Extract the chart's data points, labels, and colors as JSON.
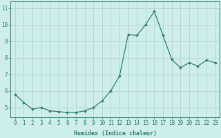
{
  "x": [
    0,
    1,
    2,
    3,
    4,
    5,
    6,
    7,
    8,
    9,
    10,
    11,
    12,
    13,
    14,
    15,
    16,
    17,
    18,
    19,
    20,
    21,
    22,
    23
  ],
  "y": [
    5.8,
    5.3,
    4.9,
    5.0,
    4.8,
    4.75,
    4.7,
    4.7,
    4.8,
    5.0,
    5.4,
    6.0,
    6.9,
    9.4,
    9.35,
    10.0,
    10.8,
    9.35,
    7.9,
    7.4,
    7.7,
    7.5,
    7.85,
    7.7
  ],
  "line_color": "#2e7d6e",
  "marker": "D",
  "marker_size": 1.8,
  "bg_color": "#cdeeed",
  "grid_color": "#b0cccb",
  "xlabel": "Humidex (Indice chaleur)",
  "ylim": [
    4.4,
    11.4
  ],
  "xlim": [
    -0.5,
    23.5
  ],
  "yticks": [
    5,
    6,
    7,
    8,
    9,
    10,
    11
  ],
  "xticks": [
    0,
    1,
    2,
    3,
    4,
    5,
    6,
    7,
    8,
    9,
    10,
    11,
    12,
    13,
    14,
    15,
    16,
    17,
    18,
    19,
    20,
    21,
    22,
    23
  ],
  "xlabel_fontsize": 6.0,
  "tick_fontsize": 5.5,
  "line_width": 0.9
}
